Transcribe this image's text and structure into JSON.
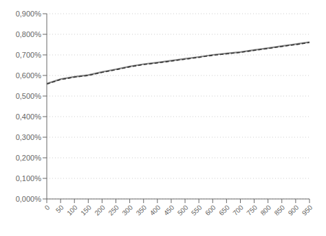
{
  "chart_data": {
    "type": "line",
    "x": [
      0,
      50,
      100,
      150,
      200,
      250,
      300,
      350,
      400,
      450,
      500,
      550,
      600,
      650,
      700,
      750,
      800,
      850,
      900,
      950
    ],
    "series": [
      {
        "color": "#888888",
        "line_style": "solid",
        "values": [
          0.0056,
          0.00582,
          0.00594,
          0.00602,
          0.00617,
          0.0063,
          0.00644,
          0.00655,
          0.00663,
          0.00672,
          0.00681,
          0.0069,
          0.007,
          0.00707,
          0.00714,
          0.00724,
          0.00733,
          0.00743,
          0.00752,
          0.00762
        ]
      },
      {
        "color": "#333333",
        "line_style": "dashed",
        "values": [
          0.00558,
          0.0058,
          0.00592,
          0.006,
          0.00615,
          0.00628,
          0.00642,
          0.00653,
          0.00661,
          0.0067,
          0.00679,
          0.00688,
          0.00698,
          0.00705,
          0.00712,
          0.00722,
          0.00731,
          0.00741,
          0.0075,
          0.0076
        ]
      }
    ],
    "xlim": [
      0,
      950
    ],
    "xticks": [
      0,
      50,
      100,
      150,
      200,
      250,
      300,
      350,
      400,
      450,
      500,
      550,
      600,
      650,
      700,
      750,
      800,
      850,
      900,
      950
    ],
    "ylim": [
      0.0,
      0.009
    ],
    "yticks": [
      {
        "value": 0.0,
        "label": "0,000%"
      },
      {
        "value": 0.001,
        "label": "0,100%"
      },
      {
        "value": 0.002,
        "label": "0,200%"
      },
      {
        "value": 0.003,
        "label": "0,300%"
      },
      {
        "value": 0.004,
        "label": "0,400%"
      },
      {
        "value": 0.005,
        "label": "0,500%"
      },
      {
        "value": 0.006,
        "label": "0,600%"
      },
      {
        "value": 0.007,
        "label": "0,700%"
      },
      {
        "value": 0.008,
        "label": "0,800%"
      },
      {
        "value": 0.009,
        "label": "0,900%"
      }
    ],
    "grid": true
  }
}
